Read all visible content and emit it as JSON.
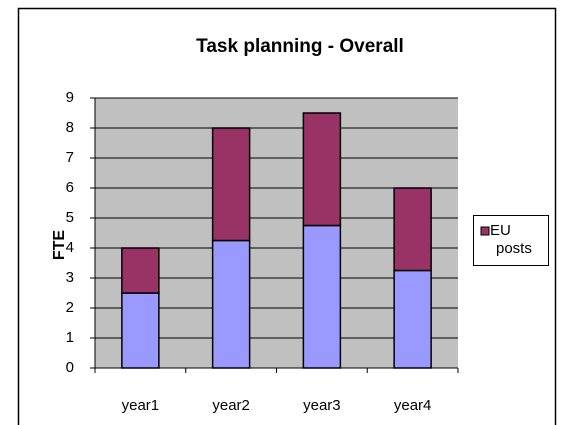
{
  "chart_data": {
    "type": "stacked-bar",
    "title": "Task planning - Overall",
    "y_label": "FTE",
    "categories": [
      "year1",
      "year2",
      "year3",
      "year4"
    ],
    "series": [
      {
        "color": "#9999ff",
        "values": [
          2.5,
          4.25,
          4.75,
          3.25
        ]
      },
      {
        "name": "EU posts",
        "color": "#993366",
        "values": [
          1.5,
          3.75,
          3.75,
          2.75
        ]
      }
    ],
    "ylim": [
      0,
      9
    ],
    "yticks": [
      0,
      1,
      2,
      3,
      4,
      5,
      6,
      7,
      8,
      9
    ],
    "grid": true,
    "legend": "right"
  }
}
